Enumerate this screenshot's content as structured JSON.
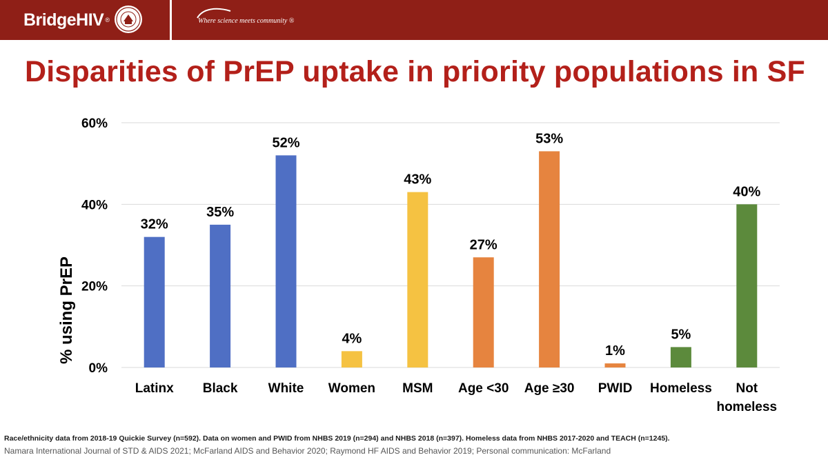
{
  "header": {
    "logo_text": "BridgeHIV",
    "logo_reg": "®",
    "tagline": "Where science meets community ®",
    "bg_color": "#8f1f17"
  },
  "slide": {
    "title": "Disparities of PrEP uptake in priority populations in SF",
    "title_color": "#b3201a"
  },
  "chart_data": {
    "type": "bar",
    "ylabel": "% using PrEP",
    "ylim": [
      0,
      60
    ],
    "yticks": [
      0,
      20,
      40,
      60
    ],
    "ytick_labels": [
      "0%",
      "20%",
      "40%",
      "60%"
    ],
    "grid": true,
    "categories": [
      "Latinx",
      "Black",
      "White",
      "Women",
      "MSM",
      "Age <30",
      "Age ≥30",
      "PWID",
      "Homeless",
      "Not homeless"
    ],
    "category_lines": [
      [
        "Latinx"
      ],
      [
        "Black"
      ],
      [
        "White"
      ],
      [
        "Women"
      ],
      [
        "MSM"
      ],
      [
        "Age <30"
      ],
      [
        "Age ≥30"
      ],
      [
        "PWID"
      ],
      [
        "Homeless"
      ],
      [
        "Not",
        "homeless"
      ]
    ],
    "values": [
      32,
      35,
      52,
      4,
      43,
      27,
      53,
      1,
      5,
      40
    ],
    "value_labels": [
      "32%",
      "35%",
      "52%",
      "4%",
      "43%",
      "27%",
      "53%",
      "1%",
      "5%",
      "40%"
    ],
    "bar_colors": [
      "#4f6fc4",
      "#4f6fc4",
      "#4f6fc4",
      "#f5c242",
      "#f5c242",
      "#e6843f",
      "#e6843f",
      "#e6843f",
      "#5c8a3c",
      "#5c8a3c"
    ]
  },
  "footnotes": {
    "line1": "Race/ethnicity data from 2018-19 Quickie Survey (n=592).  Data on women and PWID from NHBS 2019 (n=294) and NHBS 2018 (n=397). Homeless data from NHBS 2017-2020 and TEACH (n=1245).",
    "line2": "Namara International Journal of STD & AIDS 2021; McFarland AIDS and Behavior 2020; Raymond HF AIDS and Behavior 2019; Personal communication: McFarland"
  }
}
